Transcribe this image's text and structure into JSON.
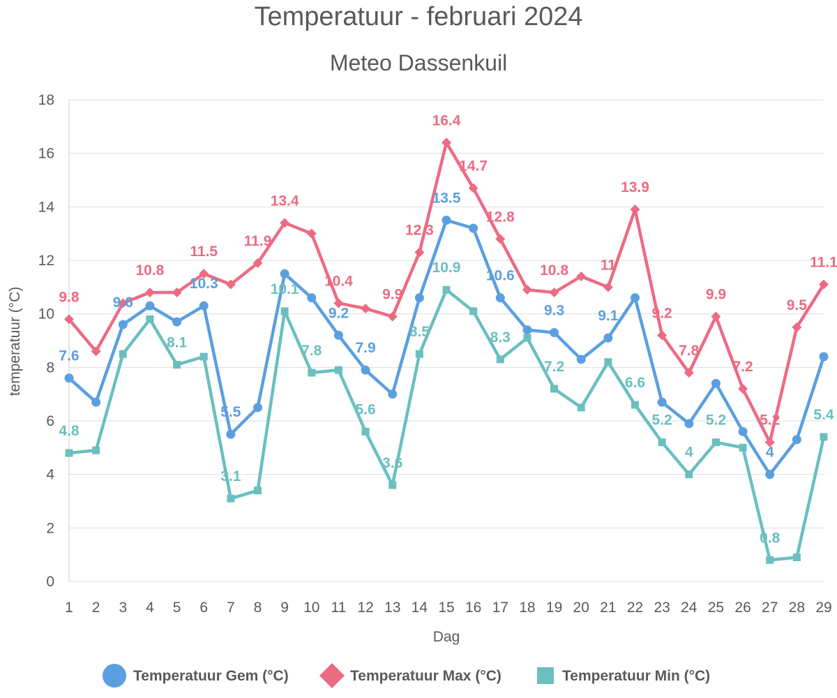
{
  "chart_data": {
    "type": "line",
    "title": "Temperatuur - februari 2024",
    "subtitle": "Meteo Dassenkuil",
    "xlabel": "Dag",
    "ylabel": "temperatuur (°C)",
    "ylim": [
      0,
      18
    ],
    "yticks": [
      0,
      2,
      4,
      6,
      8,
      10,
      12,
      14,
      16,
      18
    ],
    "grid": true,
    "legend_position": "bottom",
    "categories": [
      1,
      2,
      3,
      4,
      5,
      6,
      7,
      8,
      9,
      10,
      11,
      12,
      13,
      14,
      15,
      16,
      17,
      18,
      19,
      20,
      21,
      22,
      23,
      24,
      25,
      26,
      27,
      28,
      29
    ],
    "series": [
      {
        "name": "Temperatuur Gem (°C)",
        "color": "#5a9fe0",
        "marker": "circle",
        "values": [
          7.6,
          6.7,
          9.6,
          10.3,
          9.7,
          10.3,
          5.5,
          6.5,
          11.5,
          10.6,
          9.2,
          7.9,
          7.0,
          10.6,
          13.5,
          13.2,
          10.6,
          9.4,
          9.3,
          8.3,
          9.1,
          10.6,
          6.7,
          5.9,
          7.4,
          5.6,
          4.0,
          5.3,
          8.4
        ],
        "labels": [
          7.6,
          null,
          9.6,
          null,
          null,
          10.3,
          5.5,
          null,
          null,
          null,
          9.2,
          7.9,
          null,
          null,
          13.5,
          null,
          10.6,
          null,
          9.3,
          null,
          9.1,
          null,
          null,
          null,
          null,
          null,
          4,
          null,
          null
        ]
      },
      {
        "name": "Temperatuur Max (°C)",
        "color": "#ec6b82",
        "marker": "diamond",
        "values": [
          9.8,
          8.6,
          10.4,
          10.8,
          10.8,
          11.5,
          11.1,
          11.9,
          13.4,
          13.0,
          10.4,
          10.2,
          9.9,
          12.3,
          16.4,
          14.7,
          12.8,
          10.9,
          10.8,
          11.4,
          11.0,
          13.9,
          9.2,
          7.8,
          9.9,
          7.2,
          5.2,
          9.5,
          11.1
        ],
        "labels": [
          9.8,
          null,
          null,
          10.8,
          null,
          11.5,
          null,
          11.9,
          13.4,
          null,
          10.4,
          null,
          9.9,
          12.3,
          16.4,
          14.7,
          12.8,
          null,
          10.8,
          null,
          11,
          13.9,
          9.2,
          7.8,
          9.9,
          7.2,
          5.2,
          9.5,
          11.1
        ]
      },
      {
        "name": "Temperatuur Min (°C)",
        "color": "#6bbfbf",
        "marker": "square",
        "values": [
          4.8,
          4.9,
          8.5,
          9.8,
          8.1,
          8.4,
          3.1,
          3.4,
          10.1,
          7.8,
          7.9,
          5.6,
          3.6,
          8.5,
          10.9,
          10.1,
          8.3,
          9.1,
          7.2,
          6.5,
          8.2,
          6.6,
          5.2,
          4.0,
          5.2,
          5.0,
          0.8,
          0.9,
          5.4
        ],
        "labels": [
          4.8,
          null,
          null,
          null,
          8.1,
          null,
          3.1,
          null,
          10.1,
          7.8,
          null,
          5.6,
          3.6,
          8.5,
          10.9,
          null,
          8.3,
          null,
          7.2,
          null,
          null,
          6.6,
          5.2,
          4,
          5.2,
          null,
          0.8,
          null,
          5.4
        ]
      }
    ]
  }
}
